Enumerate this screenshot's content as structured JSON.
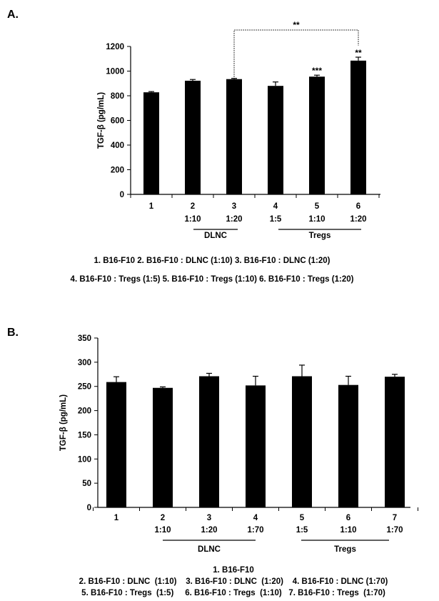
{
  "chart_data": [
    {
      "type": "bar",
      "panel_label": "A.",
      "ylabel": "TGF-β (pg/mL)",
      "ylim": [
        0,
        1200
      ],
      "yticks": [
        0,
        200,
        400,
        600,
        800,
        1000,
        1200
      ],
      "categories": [
        {
          "number": "1",
          "ratio": ""
        },
        {
          "number": "2",
          "ratio": "1:10"
        },
        {
          "number": "3",
          "ratio": "1:20"
        },
        {
          "number": "4",
          "ratio": "1:5"
        },
        {
          "number": "5",
          "ratio": "1:10"
        },
        {
          "number": "6",
          "ratio": "1:20"
        }
      ],
      "values": [
        828,
        922,
        935,
        880,
        955,
        1085
      ],
      "errors": [
        6,
        10,
        6,
        32,
        12,
        28
      ],
      "bar_annotations": [
        "",
        "",
        "",
        "",
        "***",
        "**"
      ],
      "bracket": {
        "from": 3,
        "to": 6,
        "label": "**"
      },
      "groups": [
        {
          "label": "DLNC",
          "from": 2,
          "to": 3
        },
        {
          "label": "Tregs",
          "from": 4,
          "to": 6
        }
      ],
      "caption_lines": [
        "1. B16-F10 2. B16-F10 : DLNC (1:10) 3. B16-F10 : DLNC (1:20)",
        "4. B16-F10 : Tregs (1:5) 5. B16-F10 : Tregs (1:10) 6. B16-F10 : Tregs (1:20)"
      ]
    },
    {
      "type": "bar",
      "panel_label": "B.",
      "ylabel": "TGF-β (pg/mL)",
      "ylim": [
        0,
        350
      ],
      "yticks": [
        0,
        50,
        100,
        150,
        200,
        250,
        300,
        350
      ],
      "categories": [
        {
          "number": "1",
          "ratio": ""
        },
        {
          "number": "2",
          "ratio": "1:10"
        },
        {
          "number": "3",
          "ratio": "1:20"
        },
        {
          "number": "4",
          "ratio": "1:70"
        },
        {
          "number": "5",
          "ratio": "1:5"
        },
        {
          "number": "6",
          "ratio": "1:10"
        },
        {
          "number": "7",
          "ratio": "1:70"
        }
      ],
      "values": [
        259,
        247,
        271,
        252,
        271,
        253,
        270
      ],
      "errors": [
        11,
        2,
        6,
        19,
        23,
        18,
        5
      ],
      "groups": [
        {
          "label": "DLNC",
          "from": 2,
          "to": 4
        },
        {
          "label": "Tregs",
          "from": 5,
          "to": 7
        }
      ],
      "caption_lines": [
        "1. B16-F10",
        "2. B16-F10 : DLNC  (1:10)    3. B16-F10 : DLNC  (1:20)    4. B16-F10 : DLNC (1:70)",
        "5. B16-F10 : Tregs  (1:5)     6. B16-F10 : Tregs  (1:10)   7. B16-F10 : Tregs  (1:70)"
      ]
    }
  ]
}
